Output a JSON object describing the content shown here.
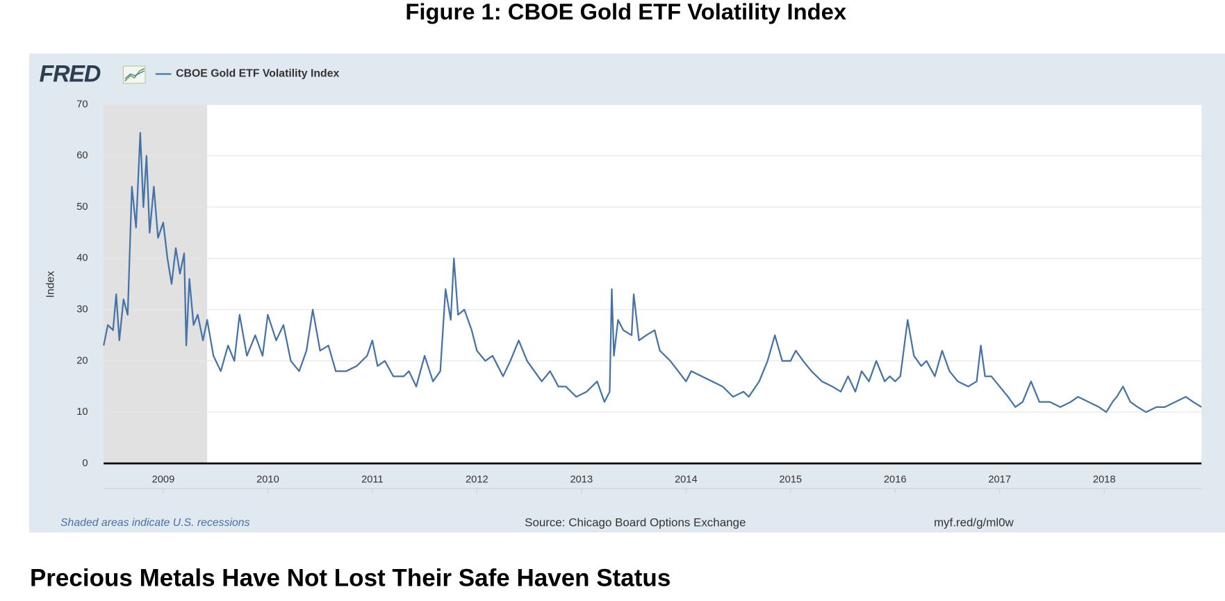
{
  "figure_title": "Figure 1: CBOE Gold ETF Volatility Index",
  "heading": "Precious Metals Have Not Lost Their Safe Haven Status",
  "chart_data": {
    "type": "line",
    "logo": "FRED",
    "ylabel": "Index",
    "recession_note": "Shaded areas indicate U.S. recessions",
    "source": "Source: Chicago Board Options Exchange",
    "link": "myf.red/g/ml0w",
    "grid": true,
    "legend": "top-left",
    "recessions": [
      [
        2008.43,
        2009.42
      ]
    ],
    "xlim": [
      2008.43,
      2018.93
    ],
    "xticks": [
      2009,
      2010,
      2011,
      2012,
      2013,
      2014,
      2015,
      2016,
      2017,
      2018
    ],
    "ylim": [
      0,
      70
    ],
    "yticks": [
      0,
      10,
      20,
      30,
      40,
      50,
      60,
      70
    ],
    "series": [
      {
        "name": "CBOE Gold ETF Volatility Index",
        "color": "#4572a7",
        "x": [
          2008.43,
          2008.47,
          2008.52,
          2008.55,
          2008.58,
          2008.62,
          2008.66,
          2008.7,
          2008.74,
          2008.78,
          2008.81,
          2008.84,
          2008.87,
          2008.91,
          2008.95,
          2009.0,
          2009.04,
          2009.08,
          2009.12,
          2009.16,
          2009.2,
          2009.22,
          2009.25,
          2009.29,
          2009.33,
          2009.38,
          2009.42,
          2009.48,
          2009.55,
          2009.62,
          2009.68,
          2009.73,
          2009.8,
          2009.88,
          2009.95,
          2010.0,
          2010.08,
          2010.15,
          2010.22,
          2010.3,
          2010.37,
          2010.43,
          2010.5,
          2010.58,
          2010.65,
          2010.75,
          2010.85,
          2010.95,
          2011.0,
          2011.05,
          2011.12,
          2011.2,
          2011.3,
          2011.35,
          2011.42,
          2011.5,
          2011.58,
          2011.65,
          2011.7,
          2011.75,
          2011.78,
          2011.82,
          2011.88,
          2011.95,
          2012.0,
          2012.08,
          2012.15,
          2012.25,
          2012.32,
          2012.4,
          2012.48,
          2012.55,
          2012.62,
          2012.7,
          2012.78,
          2012.85,
          2012.95,
          2013.05,
          2013.15,
          2013.22,
          2013.27,
          2013.29,
          2013.31,
          2013.35,
          2013.4,
          2013.48,
          2013.5,
          2013.55,
          2013.62,
          2013.7,
          2013.75,
          2013.85,
          2014.0,
          2014.05,
          2014.15,
          2014.25,
          2014.35,
          2014.45,
          2014.55,
          2014.6,
          2014.7,
          2014.78,
          2014.85,
          2014.92,
          2015.0,
          2015.05,
          2015.12,
          2015.2,
          2015.3,
          2015.4,
          2015.48,
          2015.55,
          2015.62,
          2015.68,
          2015.75,
          2015.82,
          2015.9,
          2015.95,
          2016.0,
          2016.05,
          2016.12,
          2016.18,
          2016.25,
          2016.3,
          2016.38,
          2016.45,
          2016.52,
          2016.6,
          2016.7,
          2016.78,
          2016.82,
          2016.86,
          2016.92,
          2017.0,
          2017.08,
          2017.15,
          2017.22,
          2017.3,
          2017.38,
          2017.48,
          2017.58,
          2017.68,
          2017.75,
          2017.85,
          2017.95,
          2018.02,
          2018.08,
          2018.12,
          2018.18,
          2018.25,
          2018.32,
          2018.4,
          2018.5,
          2018.58,
          2018.68,
          2018.78,
          2018.85,
          2018.93
        ],
        "values": [
          23,
          27,
          26,
          33,
          24,
          32,
          29,
          54,
          46,
          64.5,
          50,
          60,
          45,
          54,
          44,
          47,
          40,
          35,
          42,
          37,
          41,
          23,
          36,
          27,
          29,
          24,
          28,
          21,
          18,
          23,
          20,
          29,
          21,
          25,
          21,
          29,
          24,
          27,
          20,
          18,
          22,
          30,
          22,
          23,
          18,
          18,
          19,
          21,
          24,
          19,
          20,
          17,
          17,
          18,
          15,
          21,
          16,
          18,
          34,
          28,
          40,
          29,
          30,
          26,
          22,
          20,
          21,
          17,
          20,
          24,
          20,
          18,
          16,
          18,
          15,
          15,
          13,
          14,
          16,
          12,
          14,
          34,
          21,
          28,
          26,
          25,
          33,
          24,
          25,
          26,
          22,
          20,
          16,
          18,
          17,
          16,
          15,
          13,
          14,
          13,
          16,
          20,
          25,
          20,
          20,
          22,
          20,
          18,
          16,
          15,
          14,
          17,
          14,
          18,
          16,
          20,
          16,
          17,
          16,
          17,
          28,
          21,
          19,
          20,
          17,
          22,
          18,
          16,
          15,
          16,
          23,
          17,
          17,
          15,
          13,
          11,
          12,
          16,
          12,
          12,
          11,
          12,
          13,
          12,
          11,
          10,
          12,
          13,
          15,
          12,
          11,
          10,
          11,
          11,
          12,
          13,
          12,
          11
        ]
      }
    ]
  }
}
